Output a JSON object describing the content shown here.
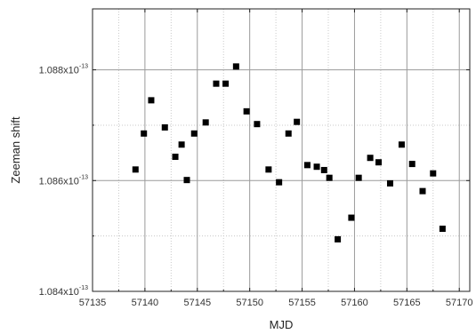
{
  "chart_data": {
    "type": "scatter",
    "xlabel": "MJD",
    "ylabel": "Zeeman shift",
    "xlim": [
      57135,
      57171
    ],
    "ylim": [
      1.084e-13,
      1.0891e-13
    ],
    "x_ticks": [
      57135,
      57140,
      57145,
      57150,
      57155,
      57160,
      57165,
      57170
    ],
    "x_tick_labels": [
      "57135",
      "57140",
      "57145",
      "57150",
      "57155",
      "57160",
      "57165",
      "57170"
    ],
    "y_major_ticks": [
      1.084e-13,
      1.086e-13,
      1.088e-13
    ],
    "y_tick_mantissas": [
      "1.084x10",
      "1.086x10",
      "1.088x10"
    ],
    "y_tick_exponents": [
      "-13",
      "-13",
      "-13"
    ],
    "y_minor_ticks": [
      1.085e-13,
      1.087e-13
    ],
    "x_minor_ticks": [
      57137.5,
      57142.5,
      57147.5,
      57152.5,
      57157.5,
      57162.5,
      57167.5
    ],
    "grid": true,
    "marker": "square",
    "marker_color": "#000000",
    "x": [
      57139.1,
      57139.9,
      57140.6,
      57141.9,
      57142.9,
      57143.5,
      57144.0,
      57144.7,
      57145.8,
      57146.8,
      57147.7,
      57148.7,
      57149.7,
      57150.7,
      57151.8,
      57152.8,
      57153.7,
      57154.5,
      57155.5,
      57156.4,
      57157.1,
      57157.6,
      57158.4,
      57159.7,
      57160.4,
      57161.5,
      57162.3,
      57163.4,
      57164.5,
      57165.5,
      57166.5,
      57167.5,
      57168.4
    ],
    "y": [
      1.0862e-13,
      1.08685e-13,
      1.08745e-13,
      1.08696e-13,
      1.08643e-13,
      1.08665e-13,
      1.08601e-13,
      1.08685e-13,
      1.08705e-13,
      1.08775e-13,
      1.08775e-13,
      1.08806e-13,
      1.08725e-13,
      1.08702e-13,
      1.0862e-13,
      1.08597e-13,
      1.08685e-13,
      1.08706e-13,
      1.08628e-13,
      1.08625e-13,
      1.08619e-13,
      1.08605e-13,
      1.08494e-13,
      1.08533e-13,
      1.08605e-13,
      1.08641e-13,
      1.08633e-13,
      1.08595e-13,
      1.08665e-13,
      1.0863e-13,
      1.08581e-13,
      1.08613e-13,
      1.08513e-13
    ]
  }
}
